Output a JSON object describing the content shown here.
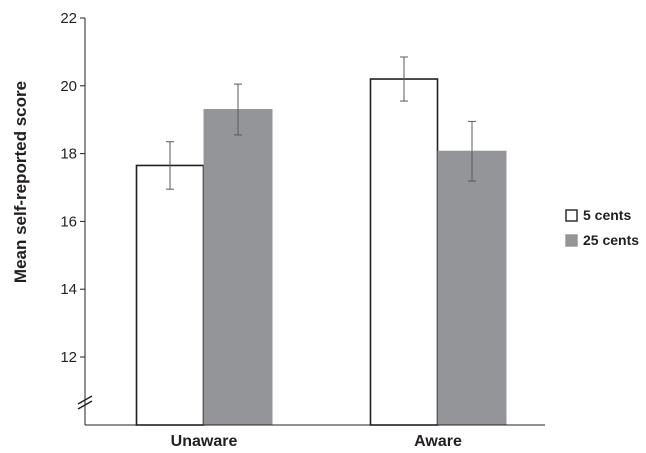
{
  "chart_data": {
    "type": "bar",
    "title": "",
    "xlabel": "",
    "ylabel": "Mean self-reported score",
    "ylim": [
      10,
      22
    ],
    "yticks": [
      12,
      14,
      16,
      18,
      20,
      22
    ],
    "axis_break": true,
    "grid": false,
    "legend_position": "right",
    "categories": [
      "Unaware",
      "Aware"
    ],
    "series": [
      {
        "name": "5 cents",
        "values": [
          17.65,
          20.2
        ],
        "errors": [
          0.7,
          0.65
        ],
        "color": "#ffffff",
        "stroke": "#231f20"
      },
      {
        "name": "25 cents",
        "values": [
          19.3,
          18.07
        ],
        "errors": [
          0.75,
          0.88
        ],
        "color": "#939598",
        "stroke": "#939598"
      }
    ]
  }
}
